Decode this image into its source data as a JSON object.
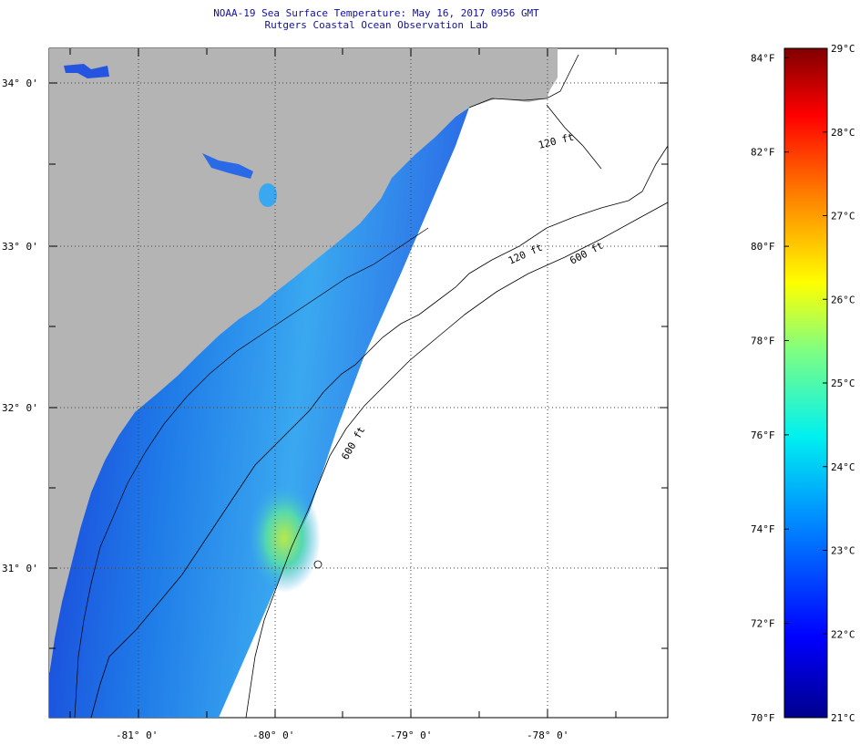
{
  "title": {
    "line1": "NOAA-19 Sea Surface Temperature:  May 16, 2017 0956 GMT",
    "line2": "Rutgers Coastal Ocean Observation Lab"
  },
  "map": {
    "lon_labels": [
      "-81° 0'",
      "-80° 0'",
      "-79° 0'",
      "-78° 0'"
    ],
    "lat_labels": [
      "34° 0'",
      "33° 0'",
      "32° 0'",
      "31° 0'"
    ],
    "isobath_labels": [
      "120 ft",
      "600 ft",
      "120 ft",
      "600 ft"
    ],
    "colors": {
      "land": "#b4b4b4",
      "ocean_nodata": "#ffffff"
    }
  },
  "colorbar": {
    "celsius_labels": [
      "29°C",
      "28°C",
      "27°C",
      "26°C",
      "25°C",
      "24°C",
      "23°C",
      "22°C",
      "21°C"
    ],
    "fahrenheit_labels": [
      "84°F",
      "82°F",
      "80°F",
      "78°F",
      "76°F",
      "74°F",
      "72°F",
      "70°F"
    ],
    "range_c": [
      21,
      29
    ],
    "range_f": [
      70,
      84.2
    ]
  }
}
